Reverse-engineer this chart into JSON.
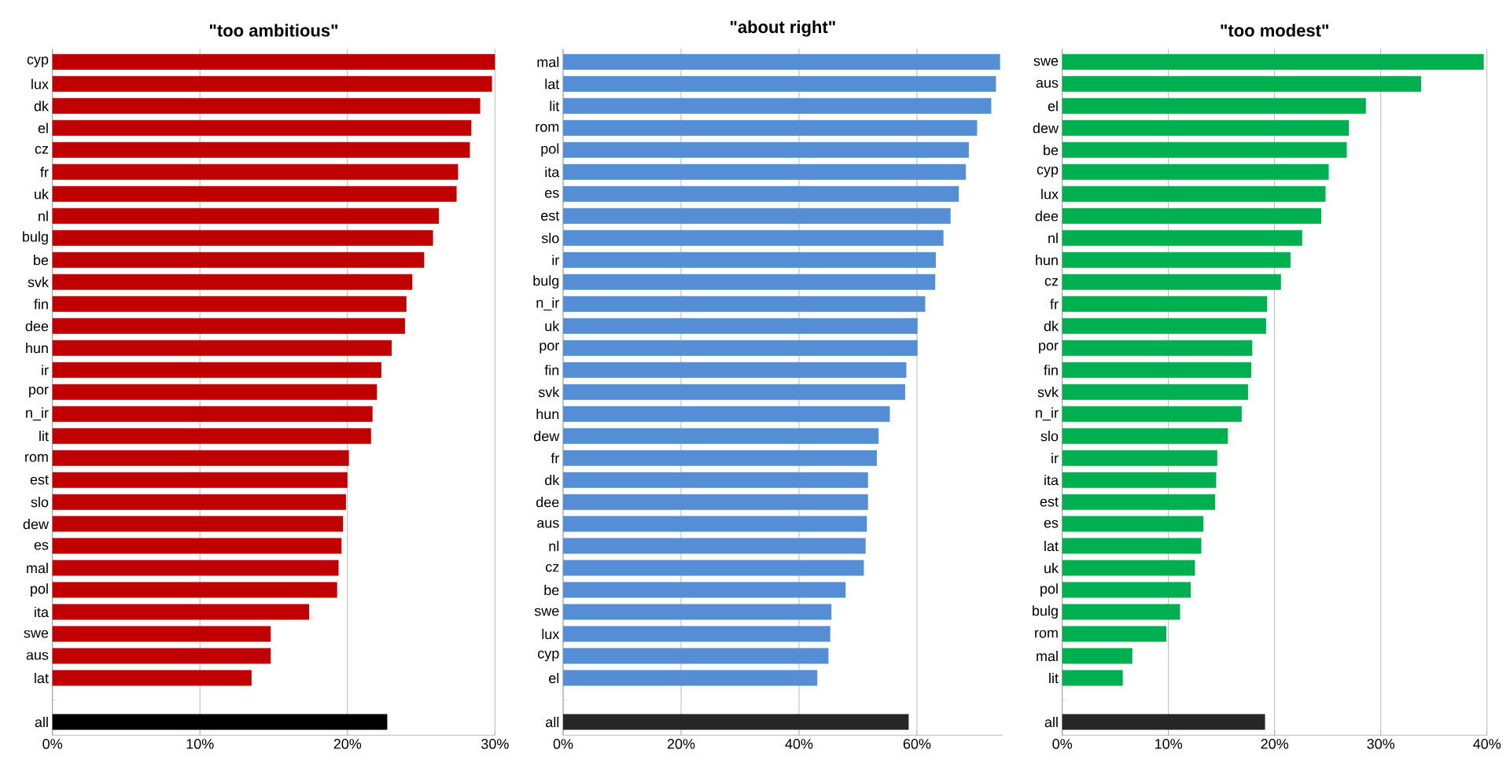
{
  "chart_data": [
    {
      "type": "bar",
      "orientation": "horizontal",
      "title": "\"too ambitious\"",
      "categories": [
        "cyp",
        "lux",
        "dk",
        "el",
        "cz",
        "fr",
        "uk",
        "nl",
        "bulg",
        "be",
        "svk",
        "fin",
        "dee",
        "hun",
        "ir",
        "por",
        "n_ir",
        "lit",
        "rom",
        "est",
        "slo",
        "dew",
        "es",
        "mal",
        "pol",
        "ita",
        "swe",
        "aus",
        "lat",
        null,
        "all"
      ],
      "values": [
        30.0,
        29.8,
        29.0,
        28.4,
        28.3,
        27.5,
        27.4,
        26.2,
        25.8,
        25.2,
        24.4,
        24.0,
        23.9,
        23.0,
        22.3,
        22.0,
        21.7,
        21.6,
        20.1,
        20.0,
        19.9,
        19.7,
        19.6,
        19.4,
        19.3,
        17.4,
        14.8,
        14.8,
        13.5,
        null,
        22.7
      ],
      "colors": [
        "#c00000",
        "#c00000",
        "#c00000",
        "#c00000",
        "#c00000",
        "#c00000",
        "#c00000",
        "#c00000",
        "#c00000",
        "#c00000",
        "#c00000",
        "#c00000",
        "#c00000",
        "#c00000",
        "#c00000",
        "#c00000",
        "#c00000",
        "#c00000",
        "#c00000",
        "#c00000",
        "#c00000",
        "#c00000",
        "#c00000",
        "#c00000",
        "#c00000",
        "#c00000",
        "#c00000",
        "#c00000",
        "#c00000",
        "#c00000",
        "#000000"
      ],
      "xlim": [
        0,
        30
      ],
      "xticks": [
        {
          "value": 0,
          "label": "0%"
        },
        {
          "value": 10,
          "label": "10%"
        },
        {
          "value": 20,
          "label": "20%"
        },
        {
          "value": 30,
          "label": "30%"
        }
      ],
      "grid": "x"
    },
    {
      "type": "bar",
      "orientation": "horizontal",
      "title": "\"about right\"",
      "categories": [
        "mal",
        "lat",
        "lit",
        "rom",
        "pol",
        "ita",
        "es",
        "est",
        "slo",
        "ir",
        "bulg",
        "n_ir",
        "uk",
        "por",
        "fin",
        "svk",
        "hun",
        "dew",
        "fr",
        "dk",
        "dee",
        "aus",
        "nl",
        "cz",
        "be",
        "swe",
        "lux",
        "cyp",
        "el",
        null,
        "all"
      ],
      "values": [
        74.1,
        73.4,
        72.6,
        70.2,
        68.8,
        68.3,
        67.1,
        65.7,
        64.5,
        63.2,
        63.1,
        61.4,
        60.1,
        60.1,
        58.2,
        58.0,
        55.4,
        53.5,
        53.2,
        51.7,
        51.7,
        51.5,
        51.3,
        51.0,
        47.9,
        45.5,
        45.3,
        45.0,
        43.1,
        null,
        58.6
      ],
      "colors": [
        "#558ed5",
        "#558ed5",
        "#558ed5",
        "#558ed5",
        "#558ed5",
        "#558ed5",
        "#558ed5",
        "#558ed5",
        "#558ed5",
        "#558ed5",
        "#558ed5",
        "#558ed5",
        "#558ed5",
        "#558ed5",
        "#558ed5",
        "#558ed5",
        "#558ed5",
        "#558ed5",
        "#558ed5",
        "#558ed5",
        "#558ed5",
        "#558ed5",
        "#558ed5",
        "#558ed5",
        "#558ed5",
        "#558ed5",
        "#558ed5",
        "#558ed5",
        "#558ed5",
        "#558ed5",
        "#262626"
      ],
      "xlim": [
        0,
        74.5
      ],
      "xticks": [
        {
          "value": 0,
          "label": "0%"
        },
        {
          "value": 20,
          "label": "20%"
        },
        {
          "value": 40,
          "label": "40%"
        },
        {
          "value": 60,
          "label": "60%"
        }
      ],
      "grid": "x"
    },
    {
      "type": "bar",
      "orientation": "horizontal",
      "title": "\"too modest\"",
      "categories": [
        "swe",
        "aus",
        "el",
        "dew",
        "be",
        "cyp",
        "lux",
        "dee",
        "nl",
        "hun",
        "cz",
        "fr",
        "dk",
        "por",
        "fin",
        "svk",
        "n_ir",
        "slo",
        "ir",
        "ita",
        "est",
        "es",
        "lat",
        "uk",
        "pol",
        "bulg",
        "rom",
        "mal",
        "lit",
        null,
        "all"
      ],
      "values": [
        39.7,
        33.8,
        28.6,
        27.0,
        26.8,
        25.1,
        24.8,
        24.4,
        22.6,
        21.5,
        20.6,
        19.3,
        19.2,
        17.9,
        17.8,
        17.5,
        16.9,
        15.6,
        14.6,
        14.5,
        14.4,
        13.3,
        13.1,
        12.5,
        12.1,
        11.1,
        9.8,
        6.6,
        5.7,
        null,
        19.1
      ],
      "colors": [
        "#00b050",
        "#00b050",
        "#00b050",
        "#00b050",
        "#00b050",
        "#00b050",
        "#00b050",
        "#00b050",
        "#00b050",
        "#00b050",
        "#00b050",
        "#00b050",
        "#00b050",
        "#00b050",
        "#00b050",
        "#00b050",
        "#00b050",
        "#00b050",
        "#00b050",
        "#00b050",
        "#00b050",
        "#00b050",
        "#00b050",
        "#00b050",
        "#00b050",
        "#00b050",
        "#00b050",
        "#00b050",
        "#00b050",
        "#00b050",
        "#262626"
      ],
      "xlim": [
        0,
        40
      ],
      "xticks": [
        {
          "value": 0,
          "label": "0%"
        },
        {
          "value": 10,
          "label": "10%"
        },
        {
          "value": 20,
          "label": "20%"
        },
        {
          "value": 30,
          "label": "30%"
        },
        {
          "value": 40,
          "label": "40%"
        }
      ],
      "grid": "x"
    }
  ]
}
